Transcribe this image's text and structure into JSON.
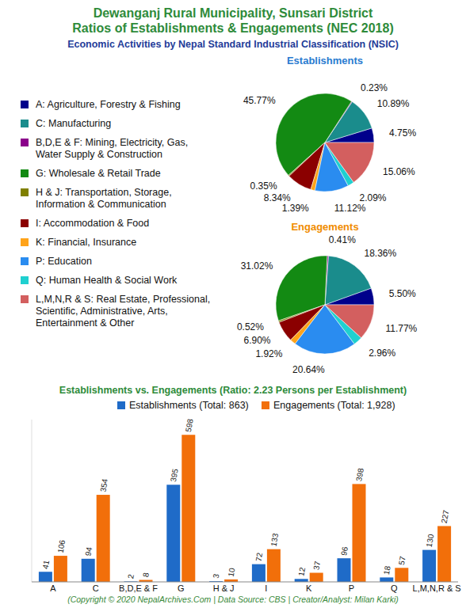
{
  "header": {
    "title": "Dewanganj Rural Municipality, Sunsari District",
    "title2": "Ratios of Establishments & Engagements (NEC 2018)",
    "subtitle": "Economic Activities by Nepal Standard Industrial Classification (NSIC)"
  },
  "footer": "(Copyright © 2020 NepalArchives.Com | Data Source: CBS | Creator/Analyst: Milan Karki)",
  "chart_data": [
    {
      "type": "pie",
      "title": "Establishments",
      "legend": "left",
      "data_labels": true,
      "categories": [
        "A: Agriculture, Forestry & Fishing",
        "C: Manufacturing",
        "B,D,E & F: Mining, Electricity, Gas, Water Supply & Construction",
        "G: Wholesale & Retail Trade",
        "H & J: Transportation, Storage, Information & Communication",
        "I: Accommodation & Food",
        "K: Financial, Insurance",
        "P: Education",
        "Q: Human Health & Social Work",
        "L,M,N,R & S: Real Estate, Professional, Scientific, Administrative, Arts, Entertainment & Other"
      ],
      "values": [
        4.75,
        10.89,
        0.23,
        45.77,
        0.35,
        8.34,
        1.39,
        11.12,
        2.09,
        15.06
      ],
      "value_labels": [
        "4.75%",
        "10.89%",
        "0.23%",
        "45.77%",
        "0.35%",
        "8.34%",
        "1.39%",
        "11.12%",
        "2.09%",
        "15.06%"
      ],
      "colors": [
        "#00008b",
        "#1a8c8c",
        "#8b008b",
        "#138a13",
        "#808000",
        "#8b0000",
        "#ffa31a",
        "#2a8cf0",
        "#1fd0d0",
        "#d35f5f"
      ]
    },
    {
      "type": "pie",
      "title": "Engagements",
      "data_labels": true,
      "categories": [
        "A: Agriculture, Forestry & Fishing",
        "C: Manufacturing",
        "B,D,E & F: Mining, Electricity, Gas, Water Supply & Construction",
        "G: Wholesale & Retail Trade",
        "H & J: Transportation, Storage, Information & Communication",
        "I: Accommodation & Food",
        "K: Financial, Insurance",
        "P: Education",
        "Q: Human Health & Social Work",
        "L,M,N,R & S: Real Estate, Professional, Scientific, Administrative, Arts, Entertainment & Other"
      ],
      "values": [
        5.5,
        18.36,
        0.41,
        31.02,
        0.52,
        6.9,
        1.92,
        20.64,
        2.96,
        11.77
      ],
      "value_labels": [
        "5.50%",
        "18.36%",
        "0.41%",
        "31.02%",
        "0.52%",
        "6.90%",
        "1.92%",
        "20.64%",
        "2.96%",
        "11.77%"
      ],
      "colors": [
        "#00008b",
        "#1a8c8c",
        "#8b008b",
        "#138a13",
        "#808000",
        "#8b0000",
        "#ffa31a",
        "#2a8cf0",
        "#1fd0d0",
        "#d35f5f"
      ]
    },
    {
      "type": "bar",
      "title": "Establishments vs. Engagements (Ratio: 2.23 Persons per Establishment)",
      "categories": [
        "A",
        "C",
        "B,D,E & F",
        "G",
        "H & J",
        "I",
        "K",
        "P",
        "Q",
        "L,M,N,R & S"
      ],
      "series": [
        {
          "name": "Establishments (Total: 863)",
          "color": "#1f6bc8",
          "values": [
            41,
            94,
            2,
            395,
            3,
            72,
            12,
            96,
            18,
            130
          ]
        },
        {
          "name": "Engagements (Total: 1,928)",
          "color": "#f26f0a",
          "values": [
            106,
            354,
            8,
            598,
            10,
            133,
            37,
            398,
            57,
            227
          ]
        }
      ],
      "ylim": [
        0,
        660
      ],
      "tick_labels": "x",
      "data_labels": true,
      "legend": "top"
    }
  ]
}
